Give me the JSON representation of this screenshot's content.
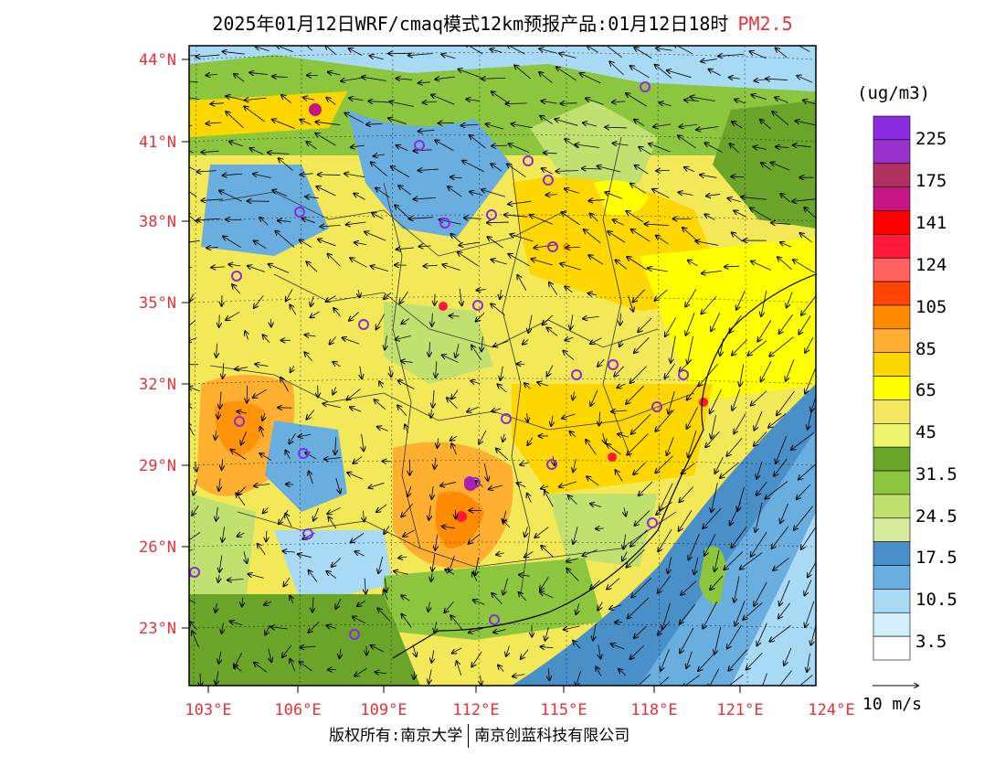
{
  "title": {
    "main": "2025年01月12日WRF/cmaq模式12km预报产品:01月12日18时",
    "variable": "PM2.5"
  },
  "axes": {
    "lat_labels": [
      "44°N",
      "41°N",
      "38°N",
      "35°N",
      "32°N",
      "29°N",
      "26°N",
      "23°N"
    ],
    "lon_labels": [
      "103°E",
      "106°E",
      "109°E",
      "112°E",
      "115°E",
      "118°E",
      "121°E",
      "124°E"
    ]
  },
  "colorbar": {
    "unit": "(ug/m3)",
    "labels": [
      "225",
      "175",
      "141",
      "124",
      "105",
      "85",
      "65",
      "45",
      "31.5",
      "24.5",
      "17.5",
      "10.5",
      "3.5"
    ],
    "colors": [
      "#8a2be2",
      "#9932cc",
      "#b03060",
      "#c71585",
      "#ff0000",
      "#ff1a3c",
      "#ff6060",
      "#ff4500",
      "#ff8c00",
      "#ffb030",
      "#ffd700",
      "#ffff00",
      "#f5e663",
      "#eef56a",
      "#6aa52a",
      "#8cc63f",
      "#c0e070",
      "#d6ea9a",
      "#4a90c8",
      "#6aaee0",
      "#a8daf5",
      "#d6f0fb",
      "#ffffff"
    ]
  },
  "vector_reference": "10 m/s",
  "footer": {
    "left": "版权所有:南京大学",
    "right": "南京创蓝科技有限公司"
  },
  "icons": [
    "city-marker-icon",
    "wind-arrow-icon"
  ]
}
